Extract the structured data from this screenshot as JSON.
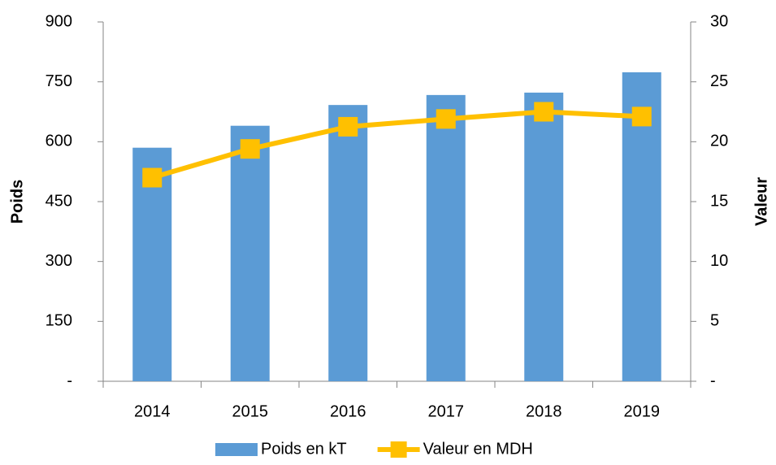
{
  "chart_data": {
    "type": "bar_line",
    "categories": [
      "2014",
      "2015",
      "2016",
      "2017",
      "2018",
      "2019"
    ],
    "series": [
      {
        "name": "Poids en kT",
        "type": "bar",
        "color": "#5b9bd5",
        "values": [
          585,
          640,
          692,
          717,
          723,
          774
        ]
      },
      {
        "name": "Valeur en MDH",
        "type": "line",
        "axis": "y2",
        "color": "#ffc000",
        "values": [
          17.0,
          19.4,
          21.25,
          21.9,
          22.5,
          22.1
        ]
      }
    ],
    "y_label": "Poids",
    "y2_label": "Valeur",
    "ylim": [
      0,
      900
    ],
    "yticks": [
      {
        "value": 0,
        "label": "-"
      },
      150,
      300,
      450,
      600,
      750,
      900
    ],
    "y2lim": [
      0,
      30
    ],
    "y2ticks": [
      {
        "value": 0,
        "label": "-"
      },
      5,
      10,
      15,
      20,
      25,
      30
    ],
    "grid": false,
    "legend": "bottom"
  }
}
